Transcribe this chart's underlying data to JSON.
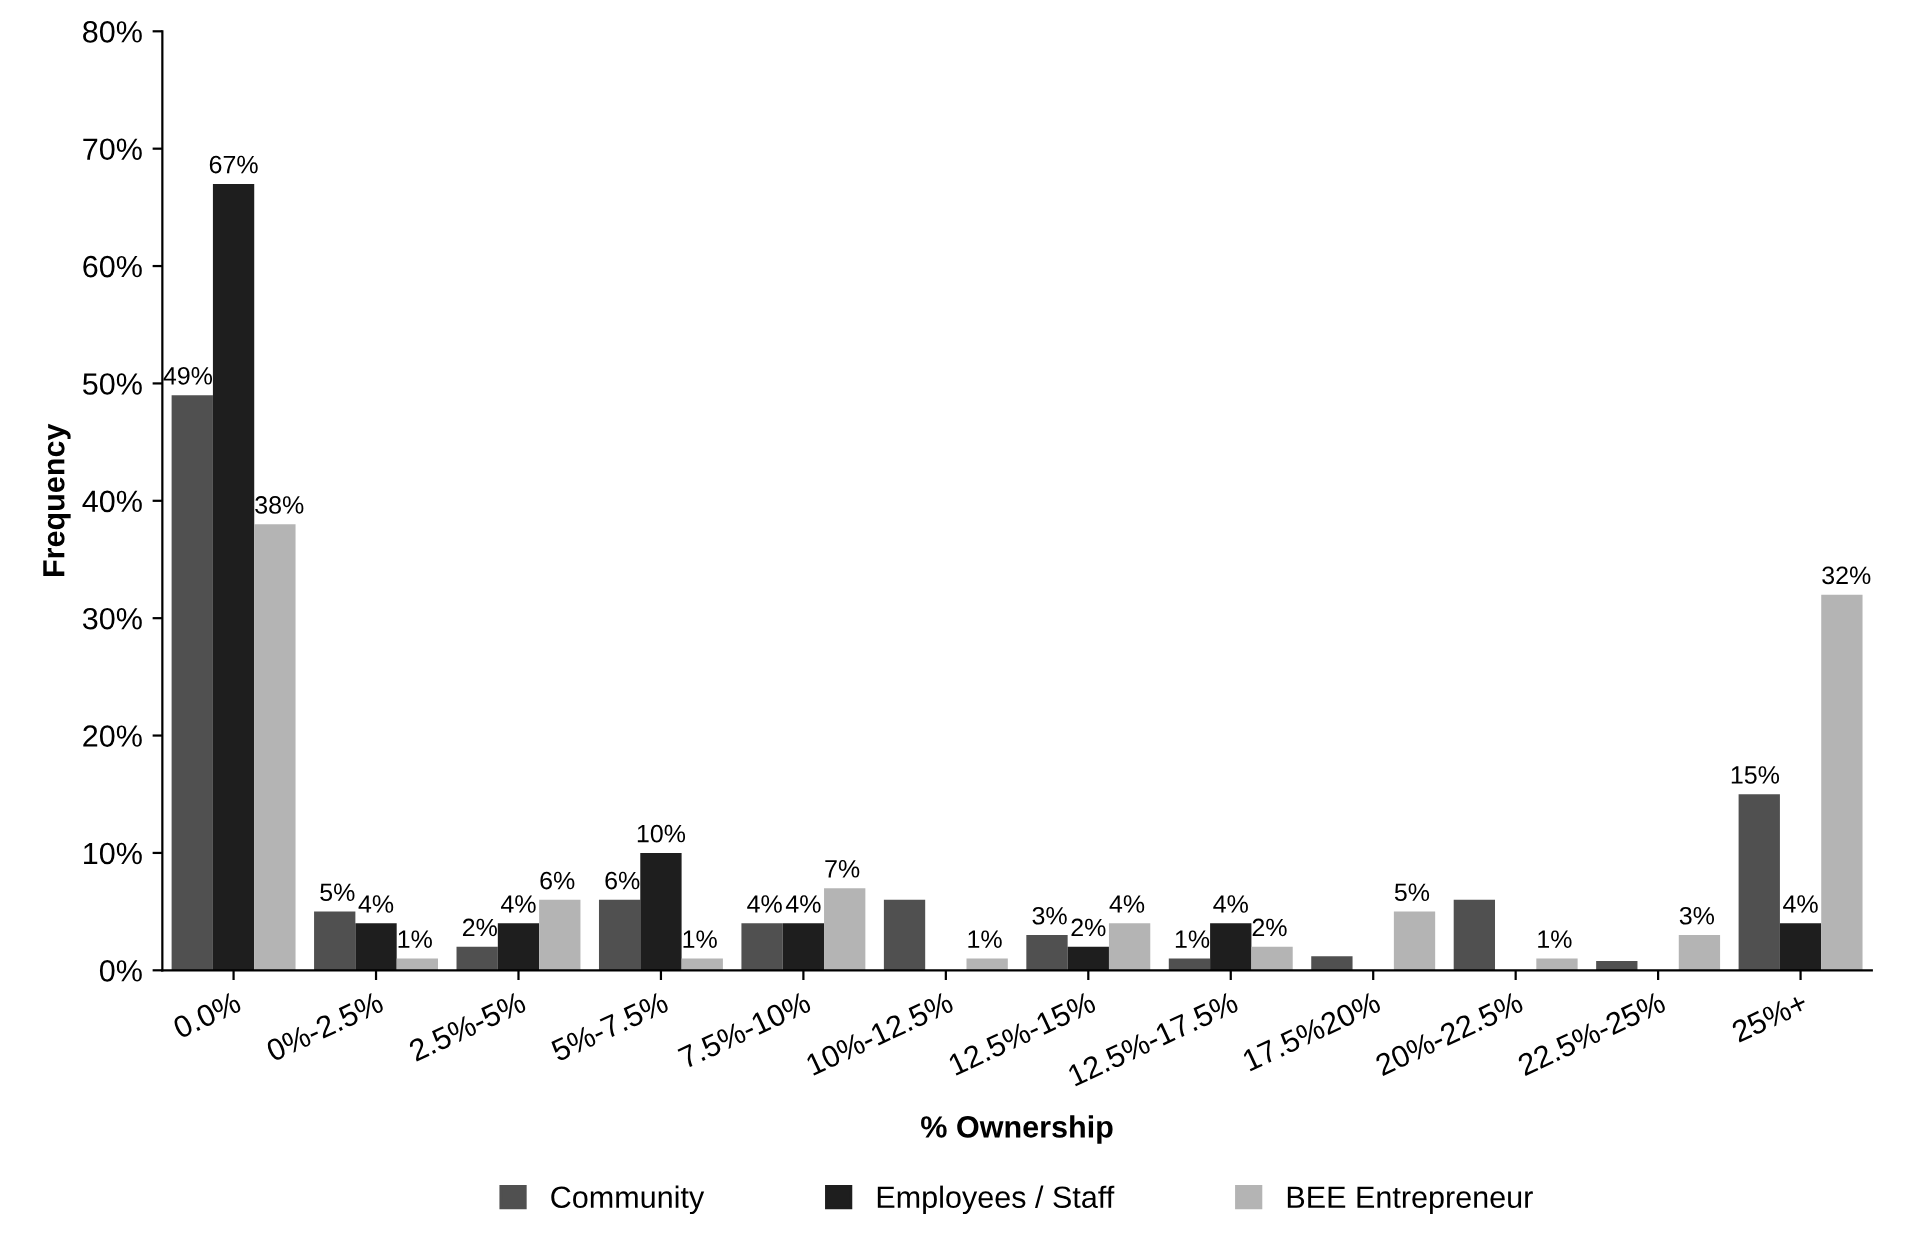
{
  "chart_data": {
    "type": "bar",
    "xlabel": "% Ownership",
    "ylabel": "Frequency",
    "categories": [
      "0.0%",
      "0%-2.5%",
      "2.5%-5%",
      "5%-7.5%",
      "7.5%-10%",
      "10%-12.5%",
      "12.5%-15%",
      "12.5%-17.5%",
      "17.5%20%",
      "20%-22.5%",
      "22.5%-25%",
      "25%+"
    ],
    "series": [
      {
        "name": "Community",
        "color": "#505050",
        "values": [
          49,
          5,
          2,
          6,
          4,
          6,
          3,
          1,
          1.2,
          6,
          0.8,
          15
        ],
        "value_labels": [
          "49%",
          "5%",
          "2%",
          "6%",
          "4%",
          null,
          "3%",
          "1%",
          null,
          null,
          null,
          "15%"
        ]
      },
      {
        "name": "Employees / Staff",
        "color": "#1e1e1e",
        "values": [
          67,
          4,
          4,
          10,
          4,
          null,
          2,
          4,
          0,
          0,
          0,
          4
        ],
        "value_labels": [
          "67%",
          "4%",
          "4%",
          "10%",
          "4%",
          null,
          "2%",
          "4%",
          null,
          null,
          null,
          "4%"
        ]
      },
      {
        "name": "BEE Entrepreneur",
        "color": "#b4b4b4",
        "values": [
          38,
          1,
          6,
          1,
          7,
          1,
          4,
          2,
          5,
          1,
          3,
          32
        ],
        "value_labels": [
          "38%",
          "1%",
          "6%",
          "1%",
          "7%",
          "1%",
          "4%",
          "2%",
          "5%",
          "1%",
          "3%",
          "32%"
        ]
      }
    ],
    "ylim": [
      0,
      80
    ],
    "yticks": [
      {
        "value": 0,
        "label": "0%"
      },
      {
        "value": 10,
        "label": "10%"
      },
      {
        "value": 20,
        "label": "20%"
      },
      {
        "value": 30,
        "label": "30%"
      },
      {
        "value": 40,
        "label": "40%"
      },
      {
        "value": 50,
        "label": "50%"
      },
      {
        "value": 60,
        "label": "60%"
      },
      {
        "value": 70,
        "label": "70%"
      },
      {
        "value": 80,
        "label": "80%"
      }
    ],
    "grid": false,
    "legend": "bottom"
  }
}
